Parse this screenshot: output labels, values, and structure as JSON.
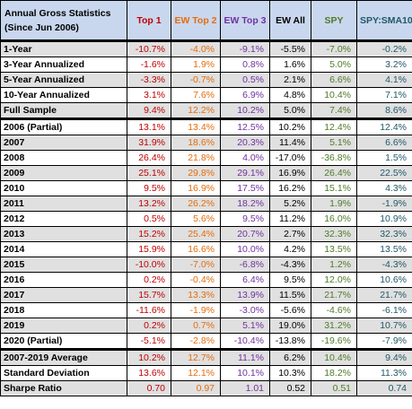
{
  "title_line1": "Annual Gross Statistics",
  "title_line2": "(Since Jun 2006)",
  "columns": [
    {
      "label": "Top 1",
      "color": "#c00000"
    },
    {
      "label": "EW Top 2",
      "color": "#e46c0a"
    },
    {
      "label": "EW Top 3",
      "color": "#7030a0"
    },
    {
      "label": "EW All",
      "color": "#000000"
    },
    {
      "label": "SPY",
      "color": "#4f7a28"
    },
    {
      "label": "SPY:SMA10",
      "color": "#215868"
    }
  ],
  "rows": [
    {
      "label": "1-Year",
      "values": [
        "-10.7%",
        "-4.0%",
        "-9.1%",
        "-5.5%",
        "-7.0%",
        "-0.2%"
      ]
    },
    {
      "label": "3-Year Annualized",
      "values": [
        "-1.6%",
        "1.9%",
        "0.8%",
        "1.6%",
        "5.0%",
        "3.2%"
      ]
    },
    {
      "label": "5-Year Annualized",
      "values": [
        "-3.3%",
        "-0.7%",
        "0.5%",
        "2.1%",
        "6.6%",
        "4.1%"
      ]
    },
    {
      "label": "10-Year Annualized",
      "values": [
        "3.1%",
        "7.6%",
        "6.9%",
        "4.8%",
        "10.4%",
        "7.1%"
      ]
    },
    {
      "label": "Full Sample",
      "values": [
        "9.4%",
        "12.2%",
        "10.2%",
        "5.0%",
        "7.4%",
        "8.6%"
      ]
    },
    {
      "label": "2006 (Partial)",
      "values": [
        "13.1%",
        "13.4%",
        "12.5%",
        "10.2%",
        "12.4%",
        "12.4%"
      ]
    },
    {
      "label": "2007",
      "values": [
        "31.9%",
        "18.6%",
        "20.3%",
        "11.4%",
        "5.1%",
        "6.6%"
      ]
    },
    {
      "label": "2008",
      "values": [
        "26.4%",
        "21.8%",
        "4.0%",
        "-17.0%",
        "-36.8%",
        "1.5%"
      ]
    },
    {
      "label": "2009",
      "values": [
        "25.1%",
        "29.8%",
        "29.1%",
        "16.9%",
        "26.4%",
        "22.5%"
      ]
    },
    {
      "label": "2010",
      "values": [
        "9.5%",
        "16.9%",
        "17.5%",
        "16.2%",
        "15.1%",
        "4.3%"
      ]
    },
    {
      "label": "2011",
      "values": [
        "13.2%",
        "26.2%",
        "18.2%",
        "5.2%",
        "1.9%",
        "-1.9%"
      ]
    },
    {
      "label": "2012",
      "values": [
        "0.5%",
        "5.6%",
        "9.5%",
        "11.2%",
        "16.0%",
        "10.9%"
      ]
    },
    {
      "label": "2013",
      "values": [
        "15.2%",
        "25.4%",
        "20.7%",
        "2.7%",
        "32.3%",
        "32.3%"
      ]
    },
    {
      "label": "2014",
      "values": [
        "15.9%",
        "16.6%",
        "10.0%",
        "4.2%",
        "13.5%",
        "13.5%"
      ]
    },
    {
      "label": "2015",
      "values": [
        "-10.0%",
        "-7.0%",
        "-6.8%",
        "-4.3%",
        "1.2%",
        "-4.3%"
      ]
    },
    {
      "label": "2016",
      "values": [
        "0.2%",
        "-0.4%",
        "6.4%",
        "9.5%",
        "12.0%",
        "10.6%"
      ]
    },
    {
      "label": "2017",
      "values": [
        "15.7%",
        "13.3%",
        "13.9%",
        "11.5%",
        "21.7%",
        "21.7%"
      ]
    },
    {
      "label": "2018",
      "values": [
        "-11.6%",
        "-1.9%",
        "-3.0%",
        "-5.6%",
        "-4.6%",
        "-6.1%"
      ]
    },
    {
      "label": "2019",
      "values": [
        "0.2%",
        "0.7%",
        "5.1%",
        "19.0%",
        "31.2%",
        "10.7%"
      ]
    },
    {
      "label": "2020 (Partial)",
      "values": [
        "-5.1%",
        "-2.8%",
        "-10.4%",
        "-13.8%",
        "-19.6%",
        "-7.9%"
      ]
    },
    {
      "label": "2007-2019 Average",
      "values": [
        "10.2%",
        "12.7%",
        "11.1%",
        "6.2%",
        "10.4%",
        "9.4%"
      ]
    },
    {
      "label": "Standard Deviation",
      "values": [
        "13.6%",
        "12.1%",
        "10.1%",
        "10.3%",
        "18.2%",
        "11.3%"
      ]
    },
    {
      "label": "Sharpe Ratio",
      "values": [
        "0.70",
        "0.97",
        "1.01",
        "0.52",
        "0.51",
        "0.74"
      ]
    }
  ]
}
